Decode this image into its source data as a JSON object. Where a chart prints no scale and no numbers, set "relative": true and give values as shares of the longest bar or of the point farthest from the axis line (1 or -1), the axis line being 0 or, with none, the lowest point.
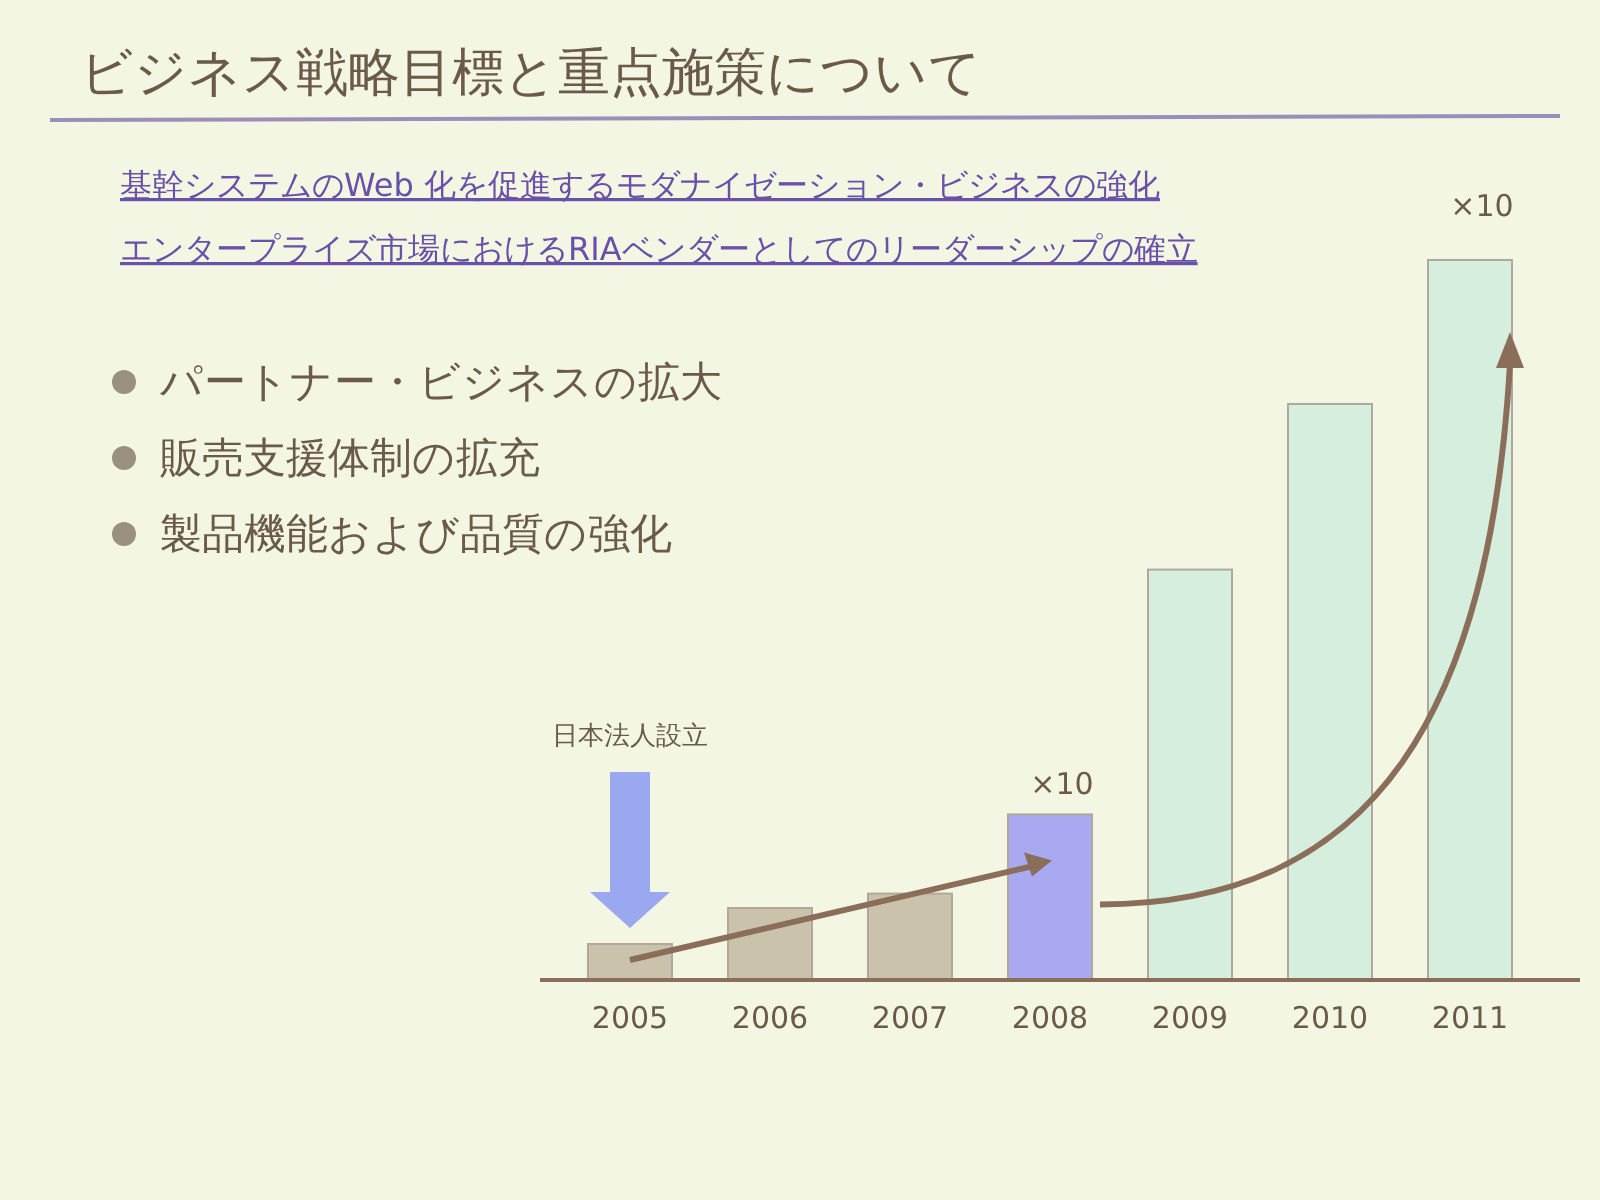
{
  "chart_data": {
    "type": "bar",
    "title": "ビジネス戦略目標と重点施策について",
    "categories": [
      "2005",
      "2006",
      "2007",
      "2008",
      "2009",
      "2010",
      "2011"
    ],
    "values": [
      0.05,
      0.1,
      0.12,
      0.23,
      0.57,
      0.8,
      1.0
    ],
    "colors": [
      "#cbc2ab",
      "#cbc2ab",
      "#cbc2ab",
      "#a9a9f2",
      "#d6eedd",
      "#d6eedd",
      "#d6eedd"
    ],
    "relative": true,
    "annotations": [
      "基幹システムのWeb 化を促進するモダナイゼーション・ビジネスの強化",
      "エンタープライズ市場におけるRIAベンダーとしてのリーダーシップの確立",
      "パートナー・ビジネスの拡大",
      "販売支援体制の拡充",
      "製品機能および品質の強化",
      "日本法人設立",
      "×10",
      "×10"
    ]
  }
}
